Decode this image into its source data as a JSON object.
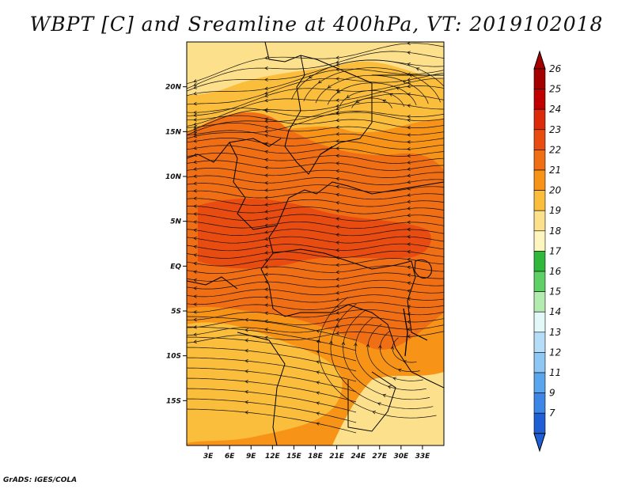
{
  "title": "WBPT [C] and Sreamline at 400hPa, VT: 2019102018",
  "credit": "GrADS: IGES/COLA",
  "map": {
    "lon_range": [
      0,
      36
    ],
    "lat_range": [
      -20,
      25
    ],
    "lon_ticks": [
      {
        "value": 3,
        "label": "3E"
      },
      {
        "value": 6,
        "label": "6E"
      },
      {
        "value": 9,
        "label": "9E"
      },
      {
        "value": 12,
        "label": "12E"
      },
      {
        "value": 15,
        "label": "15E"
      },
      {
        "value": 18,
        "label": "18E"
      },
      {
        "value": 21,
        "label": "21E"
      },
      {
        "value": 24,
        "label": "24E"
      },
      {
        "value": 27,
        "label": "27E"
      },
      {
        "value": 30,
        "label": "30E"
      },
      {
        "value": 33,
        "label": "33E"
      }
    ],
    "lat_ticks": [
      {
        "value": 20,
        "label": "20N"
      },
      {
        "value": 15,
        "label": "15N"
      },
      {
        "value": 10,
        "label": "10N"
      },
      {
        "value": 5,
        "label": "5N"
      },
      {
        "value": 0,
        "label": "EQ"
      },
      {
        "value": -5,
        "label": "5S"
      },
      {
        "value": -10,
        "label": "10S"
      },
      {
        "value": -15,
        "label": "15S"
      }
    ]
  },
  "colorbar": {
    "levels": [
      {
        "label": "26",
        "color": "#a50000"
      },
      {
        "label": "25",
        "color": "#c00000"
      },
      {
        "label": "24",
        "color": "#dc2a0a"
      },
      {
        "label": "23",
        "color": "#e84c10"
      },
      {
        "label": "22",
        "color": "#f06e14"
      },
      {
        "label": "21",
        "color": "#f79418"
      },
      {
        "label": "20",
        "color": "#fbbd3c"
      },
      {
        "label": "19",
        "color": "#fde08c"
      },
      {
        "label": "18",
        "color": "#fff5be"
      },
      {
        "label": "17",
        "color": "#2fb83a"
      },
      {
        "label": "16",
        "color": "#5fd066"
      },
      {
        "label": "15",
        "color": "#b4ecb0"
      },
      {
        "label": "14",
        "color": "#e3f8f8"
      },
      {
        "label": "13",
        "color": "#b6ddf8"
      },
      {
        "label": "12",
        "color": "#8ec6f4"
      },
      {
        "label": "11",
        "color": "#5aa6ee"
      },
      {
        "label": "9",
        "color": "#3b86e6"
      },
      {
        "label": "7",
        "color": "#1e5fd6"
      }
    ],
    "top_color": "#a50000",
    "bottom_color": "#1e5fd6"
  },
  "field_colors": {
    "light": "#fde08c",
    "orange_light": "#fbbd3c",
    "orange": "#f79418",
    "orange_dark": "#f06e14",
    "red_orange": "#e84c10"
  }
}
